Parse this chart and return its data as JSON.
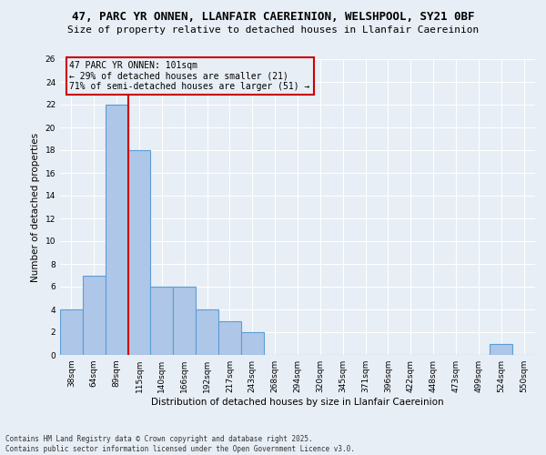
{
  "title1": "47, PARC YR ONNEN, LLANFAIR CAEREINION, WELSHPOOL, SY21 0BF",
  "title2": "Size of property relative to detached houses in Llanfair Caereinion",
  "xlabel": "Distribution of detached houses by size in Llanfair Caereinion",
  "ylabel": "Number of detached properties",
  "categories": [
    "38sqm",
    "64sqm",
    "89sqm",
    "115sqm",
    "140sqm",
    "166sqm",
    "192sqm",
    "217sqm",
    "243sqm",
    "268sqm",
    "294sqm",
    "320sqm",
    "345sqm",
    "371sqm",
    "396sqm",
    "422sqm",
    "448sqm",
    "473sqm",
    "499sqm",
    "524sqm",
    "550sqm"
  ],
  "values": [
    4,
    7,
    22,
    18,
    6,
    6,
    4,
    3,
    2,
    0,
    0,
    0,
    0,
    0,
    0,
    0,
    0,
    0,
    0,
    1,
    0
  ],
  "bar_color": "#aec6e8",
  "bar_edge_color": "#5a9fd4",
  "vline_x": 2.5,
  "vline_color": "#cc0000",
  "annotation_text": "47 PARC YR ONNEN: 101sqm\n← 29% of detached houses are smaller (21)\n71% of semi-detached houses are larger (51) →",
  "ylim": [
    0,
    26
  ],
  "yticks": [
    0,
    2,
    4,
    6,
    8,
    10,
    12,
    14,
    16,
    18,
    20,
    22,
    24,
    26
  ],
  "background_color": "#e8eef5",
  "grid_color": "#ffffff",
  "footnote": "Contains HM Land Registry data © Crown copyright and database right 2025.\nContains public sector information licensed under the Open Government Licence v3.0.",
  "title_fontsize": 9,
  "subtitle_fontsize": 8,
  "axis_label_fontsize": 7.5,
  "tick_fontsize": 6.5,
  "annotation_fontsize": 7,
  "footnote_fontsize": 5.5
}
